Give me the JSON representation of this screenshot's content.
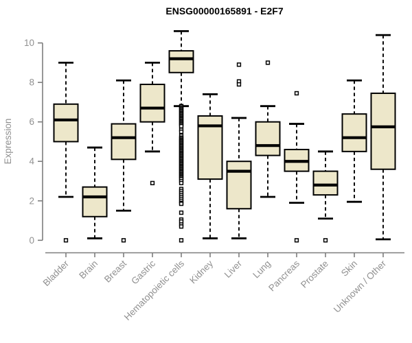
{
  "title": "ENSG00000165891 - E2F7",
  "chart_data": {
    "type": "boxplot",
    "title": "ENSG00000165891 - E2F7",
    "xlabel": "",
    "ylabel": "Expression",
    "ylim": [
      0,
      10.7
    ],
    "yticks": [
      0,
      2,
      4,
      6,
      8,
      10
    ],
    "grid": false,
    "legend": "none",
    "colors": {
      "box_fill": "#EDE7CA",
      "box_stroke": "#000000",
      "median": "#000000",
      "axis": "#7d7d7d",
      "tick_text": "#909090",
      "title_text": "#000000",
      "background": "#ffffff"
    },
    "categories": [
      "Bladder",
      "Brain",
      "Breast",
      "Gastric",
      "Hematopoietic cells",
      "Kidney",
      "Liver",
      "Lung",
      "Pancreas",
      "Prostate",
      "Skin",
      "Unknown / Other"
    ],
    "boxes": [
      {
        "category": "Bladder",
        "whisker_low": 2.2,
        "q1": 5.0,
        "median": 6.1,
        "q3": 6.9,
        "whisker_high": 9.0,
        "outliers": [
          0.0
        ]
      },
      {
        "category": "Brain",
        "whisker_low": 0.1,
        "q1": 1.2,
        "median": 2.2,
        "q3": 2.7,
        "whisker_high": 4.7,
        "outliers": []
      },
      {
        "category": "Breast",
        "whisker_low": 1.5,
        "q1": 4.1,
        "median": 5.2,
        "q3": 5.9,
        "whisker_high": 8.1,
        "outliers": [
          0.0
        ]
      },
      {
        "category": "Gastric",
        "whisker_low": 4.5,
        "q1": 6.0,
        "median": 6.7,
        "q3": 7.9,
        "whisker_high": 9.0,
        "outliers": [
          2.9
        ]
      },
      {
        "category": "Hematopoietic cells",
        "whisker_low": 6.8,
        "q1": 8.5,
        "median": 9.2,
        "q3": 9.6,
        "whisker_high": 10.6,
        "outliers": [
          6.8,
          6.74,
          6.68,
          6.62,
          6.56,
          6.5,
          6.44,
          6.38,
          6.32,
          6.26,
          6.2,
          6.14,
          6.08,
          6.02,
          5.96,
          5.9,
          5.84,
          5.78,
          5.6,
          5.5,
          5.3,
          5.2,
          5.14,
          5.08,
          5.02,
          4.96,
          4.9,
          4.84,
          4.78,
          4.72,
          4.66,
          4.6,
          4.54,
          4.48,
          4.42,
          4.36,
          4.3,
          4.24,
          4.18,
          4.12,
          4.06,
          4.0,
          3.94,
          3.88,
          3.82,
          3.76,
          3.7,
          3.64,
          3.58,
          3.52,
          3.46,
          3.4,
          3.34,
          3.28,
          3.22,
          3.16,
          3.1,
          3.0,
          2.9,
          2.6,
          2.5,
          2.4,
          2.3,
          2.2,
          2.1,
          2.0,
          1.9,
          1.85,
          1.4,
          1.05,
          0.95,
          0.8,
          0.7,
          0.0
        ]
      },
      {
        "category": "Kidney",
        "whisker_low": 0.1,
        "q1": 3.1,
        "median": 5.8,
        "q3": 6.3,
        "whisker_high": 7.4,
        "outliers": []
      },
      {
        "category": "Liver",
        "whisker_low": 0.1,
        "q1": 1.6,
        "median": 3.5,
        "q3": 4.0,
        "whisker_high": 6.2,
        "outliers": [
          8.9,
          8.05,
          7.9
        ]
      },
      {
        "category": "Lung",
        "whisker_low": 2.2,
        "q1": 4.3,
        "median": 4.8,
        "q3": 6.0,
        "whisker_high": 6.8,
        "outliers": [
          9.0
        ]
      },
      {
        "category": "Pancreas",
        "whisker_low": 1.9,
        "q1": 3.5,
        "median": 4.0,
        "q3": 4.6,
        "whisker_high": 5.9,
        "outliers": [
          7.45,
          0.0
        ]
      },
      {
        "category": "Prostate",
        "whisker_low": 1.1,
        "q1": 2.3,
        "median": 2.8,
        "q3": 3.5,
        "whisker_high": 4.5,
        "outliers": [
          0.0
        ]
      },
      {
        "category": "Skin",
        "whisker_low": 1.95,
        "q1": 4.5,
        "median": 5.2,
        "q3": 6.4,
        "whisker_high": 8.1,
        "outliers": []
      },
      {
        "category": "Unknown / Other",
        "whisker_low": 0.05,
        "q1": 3.6,
        "median": 5.75,
        "q3": 7.45,
        "whisker_high": 10.4,
        "outliers": []
      }
    ]
  }
}
